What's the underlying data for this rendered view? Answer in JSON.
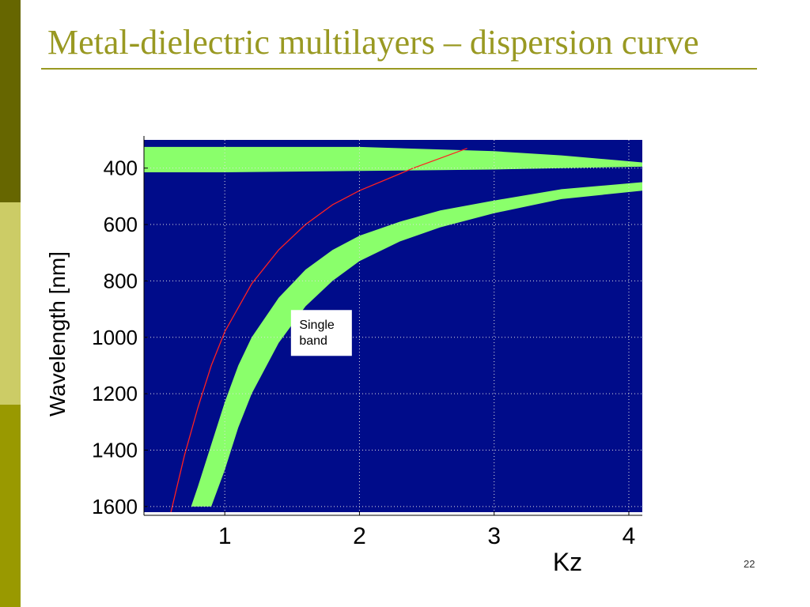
{
  "slide": {
    "title": "Metal-dielectric multilayers – dispersion curve",
    "page_number": "22",
    "colors": {
      "side_dark": "#666600",
      "side_light": "#cccc66",
      "side_mid": "#999900",
      "title": "#999922"
    }
  },
  "chart_data": {
    "type": "heatmap",
    "title": "",
    "xlabel": "Kz",
    "ylabel": "Wavelength [nm]",
    "xlim": [
      0.4,
      4.1
    ],
    "ylim": [
      300,
      1620
    ],
    "y_inverted": true,
    "grid": true,
    "x_ticks": [
      1,
      2,
      3,
      4
    ],
    "y_ticks": [
      400,
      600,
      800,
      1000,
      1200,
      1400,
      1600
    ],
    "background_color": "#000c8a",
    "band_color": "#8aff6b",
    "annotation": {
      "text": [
        "Single",
        "band"
      ],
      "at": {
        "x": 1.6,
        "y": 1000
      }
    },
    "series": [
      {
        "kind": "band",
        "color": "#8aff6b",
        "x": [
          0.75,
          0.8,
          0.9,
          1.0,
          1.1,
          1.2,
          1.4,
          1.6,
          1.8,
          2.0,
          2.3,
          2.6,
          3.0,
          3.5,
          4.1
        ],
        "lower": [
          1600,
          1530,
          1380,
          1230,
          1100,
          1000,
          860,
          760,
          690,
          640,
          590,
          550,
          515,
          475,
          450
        ],
        "upper": [
          1600,
          1600,
          1600,
          1470,
          1320,
          1200,
          1020,
          890,
          800,
          730,
          660,
          610,
          560,
          510,
          480
        ]
      },
      {
        "kind": "band",
        "color": "#8aff6b",
        "x": [
          0.4,
          1.0,
          2.0,
          3.0,
          3.5,
          4.1
        ],
        "lower": [
          325,
          325,
          325,
          340,
          355,
          380
        ],
        "upper": [
          415,
          415,
          410,
          405,
          400,
          395
        ]
      },
      {
        "kind": "line",
        "color": "#ff2020",
        "x": [
          0.6,
          0.7,
          0.8,
          0.9,
          1.0,
          1.2,
          1.4,
          1.6,
          1.8,
          2.0,
          2.2,
          2.4,
          2.6,
          2.8
        ],
        "y": [
          1620,
          1420,
          1250,
          1100,
          980,
          810,
          690,
          600,
          530,
          480,
          440,
          400,
          365,
          330
        ]
      }
    ]
  }
}
